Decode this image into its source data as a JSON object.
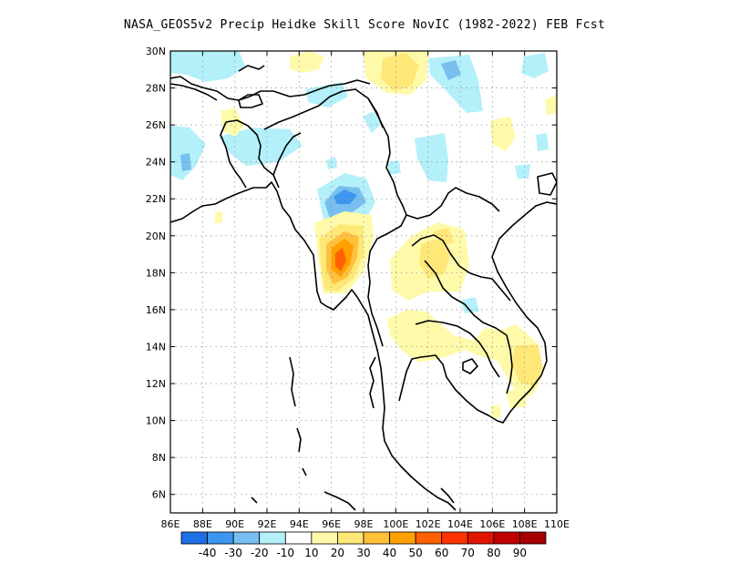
{
  "title": "NASA_GEOS5v2 Precip Heidke Skill Score NovIC (1982-2022) FEB Fcst",
  "map": {
    "lon_range": [
      86,
      110
    ],
    "lat_range": [
      5,
      30
    ],
    "lon_ticks": [
      "86E",
      "88E",
      "90E",
      "92E",
      "94E",
      "96E",
      "98E",
      "100E",
      "102E",
      "104E",
      "106E",
      "108E",
      "110E"
    ],
    "lat_ticks": [
      "30N",
      "28N",
      "26N",
      "24N",
      "22N",
      "20N",
      "18N",
      "16N",
      "14N",
      "12N",
      "10N",
      "8N",
      "6N"
    ],
    "gridlines": "dotted"
  },
  "colorbar": {
    "colors": [
      "#1e6ee6",
      "#3c96f0",
      "#78bef0",
      "#b4f0fa",
      "#ffffff",
      "#fffaaa",
      "#ffe878",
      "#ffc03c",
      "#ffa000",
      "#ff6000",
      "#ff3200",
      "#e11400",
      "#c00000",
      "#a50000"
    ],
    "labels": [
      "-40",
      "-30",
      "-20",
      "-10",
      "10",
      "20",
      "30",
      "40",
      "50",
      "60",
      "70",
      "80",
      "90"
    ]
  }
}
